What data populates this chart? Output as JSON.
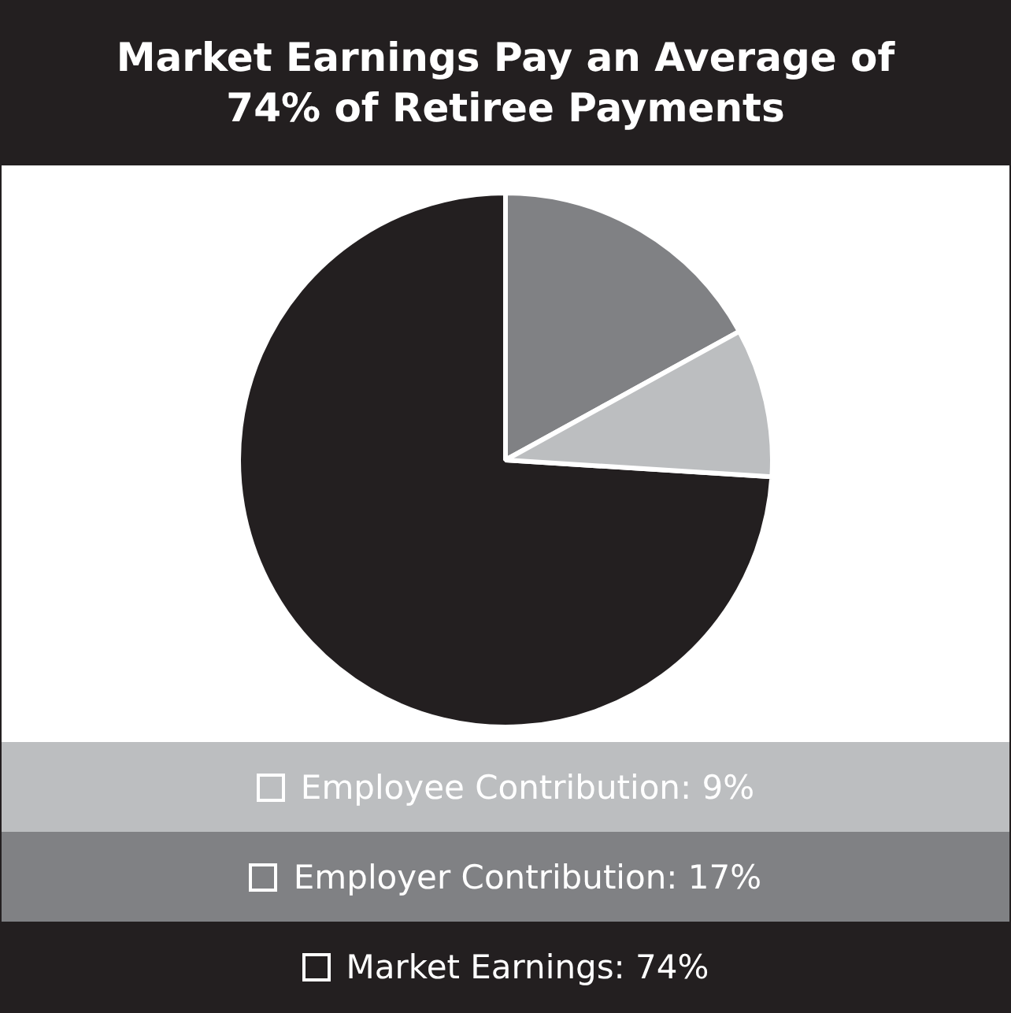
{
  "chart_data": {
    "type": "pie",
    "title": "Market Earnings Pay an Average of 74% of Retiree Payments",
    "categories": [
      "Market Earnings",
      "Employer Contribution",
      "Employee Contribution"
    ],
    "values": [
      74,
      17,
      9
    ],
    "value_labels": [
      "74%",
      "17%",
      "9%"
    ],
    "colors": [
      "#231f20",
      "#808184",
      "#bcbec0"
    ],
    "legend": "bottom"
  }
}
